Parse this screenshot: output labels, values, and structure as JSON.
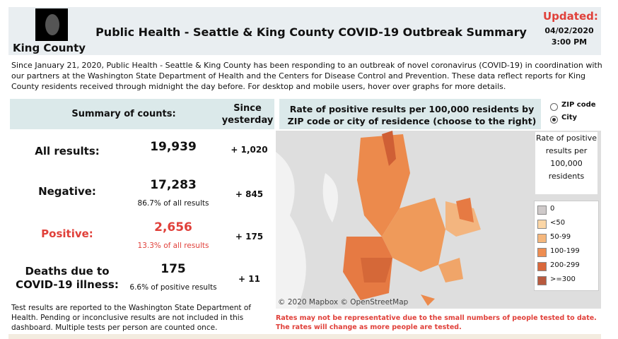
{
  "header": {
    "logo_text": "King County",
    "title": "Public Health - Seattle & King County COVID-19 Outbreak Summary",
    "updated_label": "Updated:",
    "date": "04/02/2020",
    "time": "3:00 PM"
  },
  "intro": "Since January 21, 2020, Public Health - Seattle & King County has been responding to an outbreak of novel coronavirus (COVID-19) in coordination with our partners at the Washington State Department of Health and the Centers for Disease Control and Prevention. These data reflect reports for King County residents received through midnight the day before. For desktop and mobile users, hover over graphs for more details.",
  "summary": {
    "heading": "Summary of counts:",
    "since_heading": "Since yesterday",
    "rows": [
      {
        "label": "All results:",
        "value": "19,939",
        "change": "+ 1,020"
      },
      {
        "label": "Negative:",
        "value": "17,283",
        "note": "86.7% of all results",
        "change": "+ 845"
      },
      {
        "label": "Positive:",
        "value": "2,656",
        "note": "13.3% of all results",
        "change": "+ 175"
      },
      {
        "label": "Deaths due to COVID-19 illness:",
        "value": "175",
        "note": "6.6% of positive results",
        "change": "+ 11"
      }
    ],
    "footnote": "Test results are reported to the Washington State Department of Health. Pending or inconclusive results are not included in this dashboard. Multiple tests per person are counted once."
  },
  "map": {
    "title": "Rate of positive results per 100,000 residents by ZIP code or city of residence (choose to the right)",
    "options": [
      "ZIP code",
      "City"
    ],
    "legend_title": "Rate of positive results per 100,000 residents",
    "legend": [
      "0",
      "<50",
      "50-99",
      "100-199",
      "200-299",
      ">=300"
    ],
    "attribution": "© 2020 Mapbox © OpenStreetMap",
    "warning": "Rates may not be representative due to the small numbers of people tested to date. The rates will change as more people are tested."
  }
}
